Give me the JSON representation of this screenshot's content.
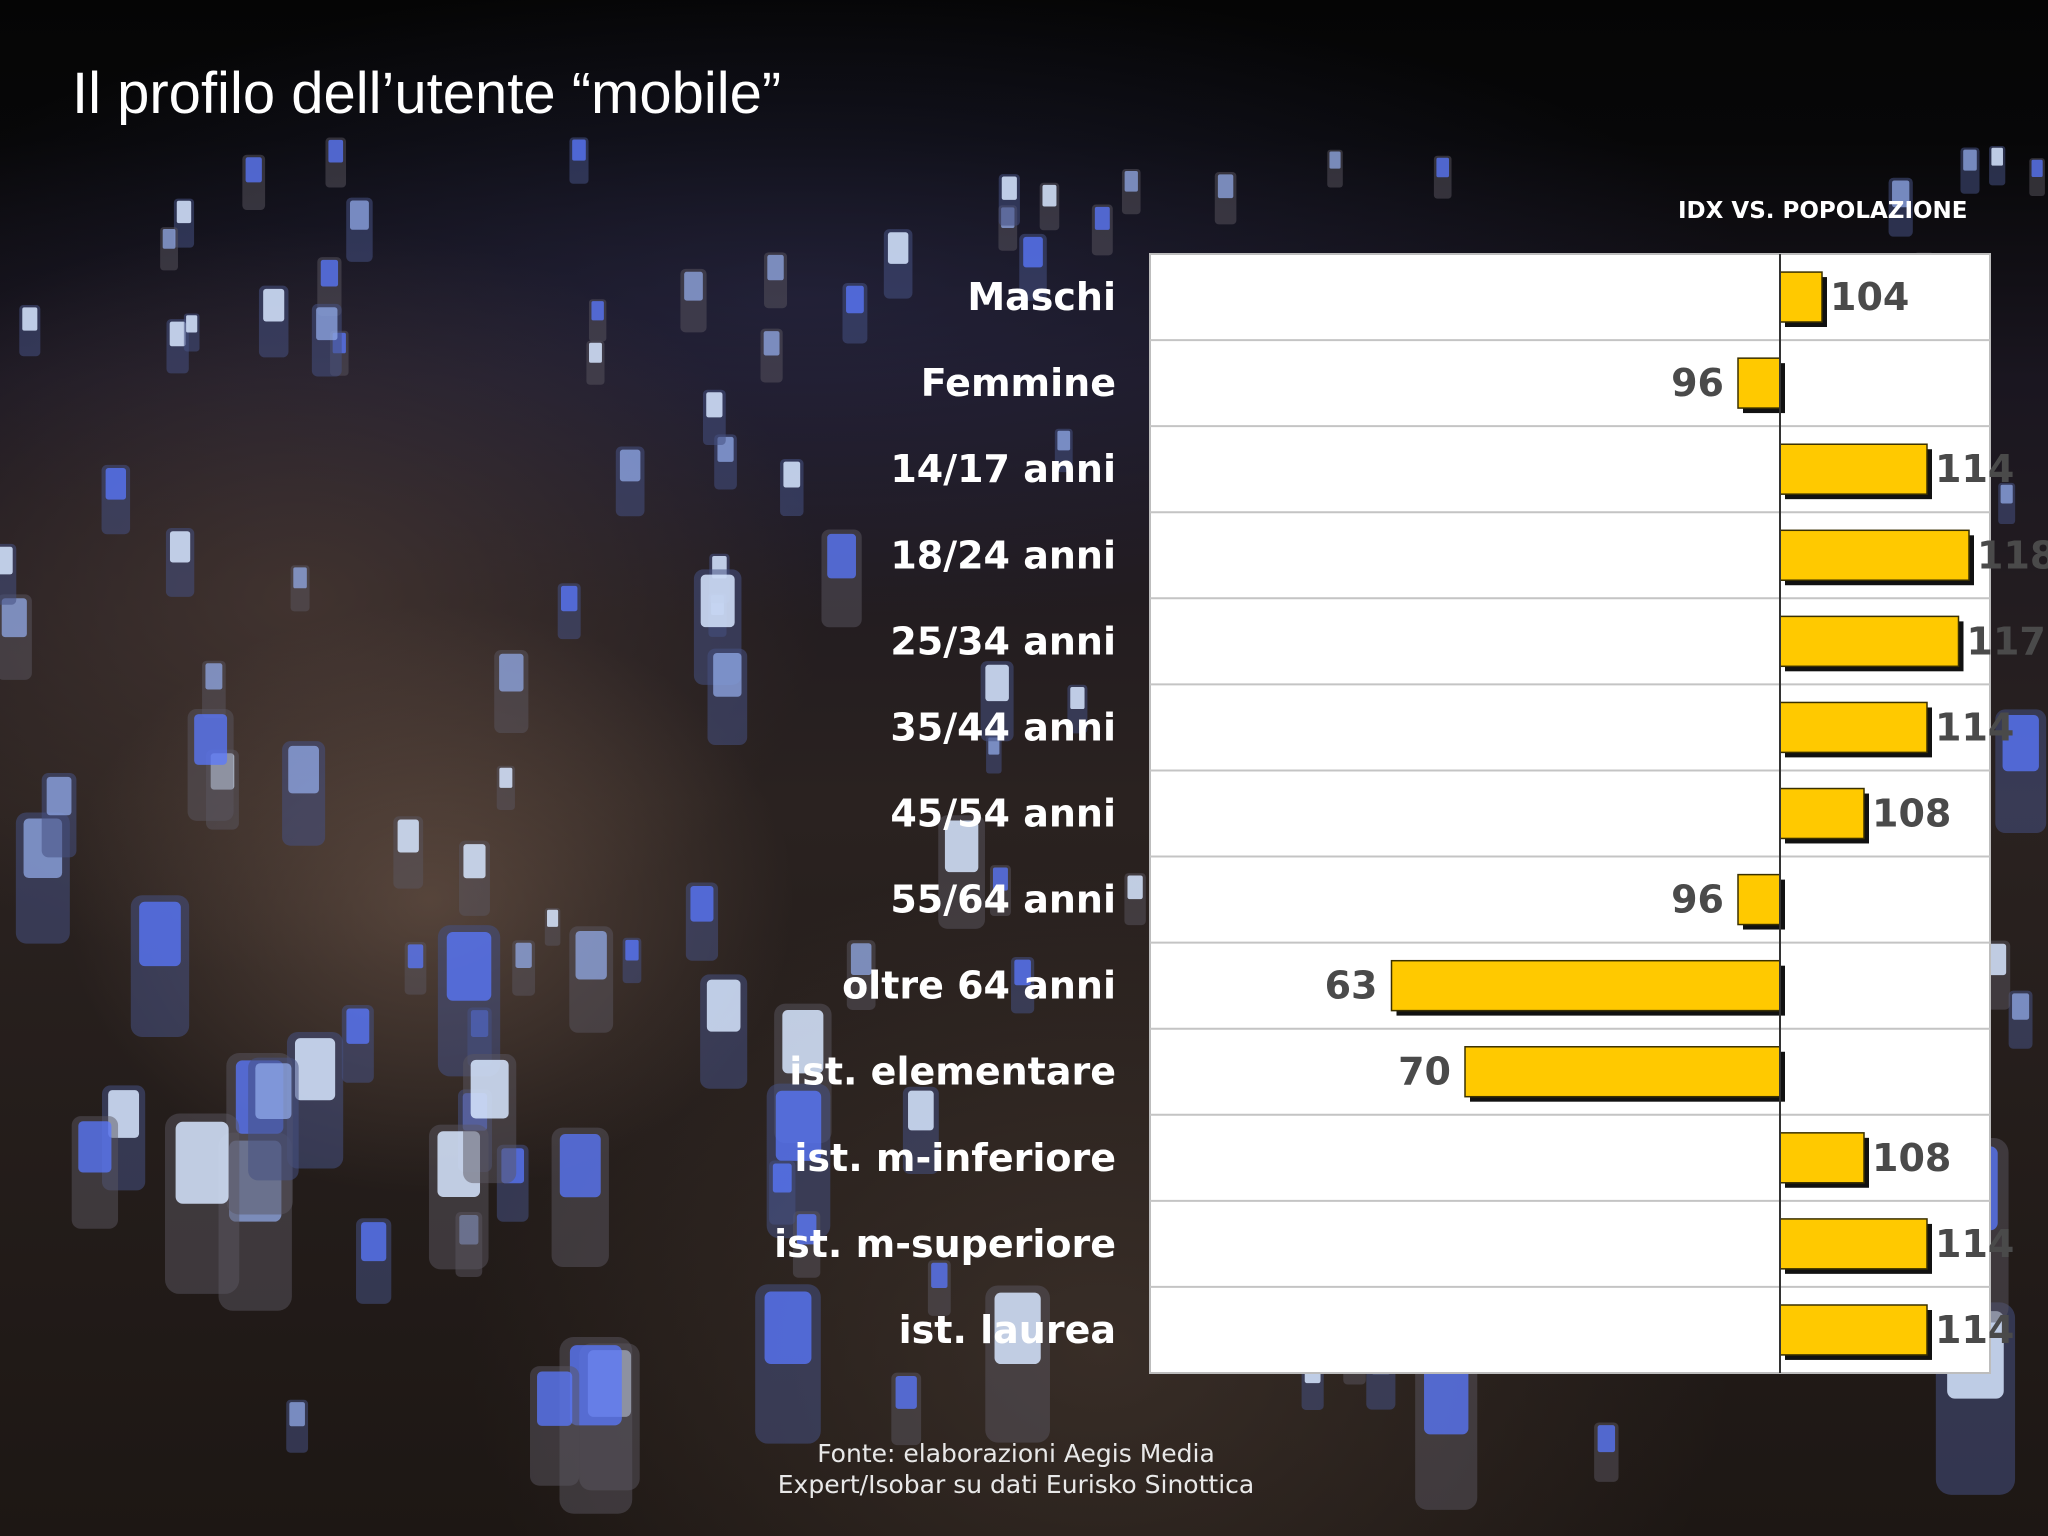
{
  "slide": {
    "title": "Il profilo dell’utente “mobile”",
    "source_line1": "Fonte: elaborazioni Aegis Media",
    "source_line2": "Expert/Isobar su dati Eurisko Sinottica"
  },
  "chart_data": {
    "type": "bar",
    "orientation": "horizontal",
    "title": "",
    "axis_title": "IDX VS. POPOLAZIONE",
    "baseline": 100,
    "xlim": [
      40,
      120
    ],
    "categories": [
      "Maschi",
      "Femmine",
      "14/17 anni",
      "18/24 anni",
      "25/34 anni",
      "35/44 anni",
      "45/54 anni",
      "55/64 anni",
      "oltre 64 anni",
      "ist. elementare",
      "ist. m-inferiore",
      "ist. m-superiore",
      "ist. laurea"
    ],
    "values": [
      104,
      96,
      114,
      118,
      117,
      114,
      108,
      96,
      63,
      70,
      108,
      114,
      114
    ],
    "bar_color": "#ffc900",
    "panel_color": "#ffffff",
    "label_color": "#ffffff",
    "value_color": "#4a4a4a",
    "grid": true
  }
}
